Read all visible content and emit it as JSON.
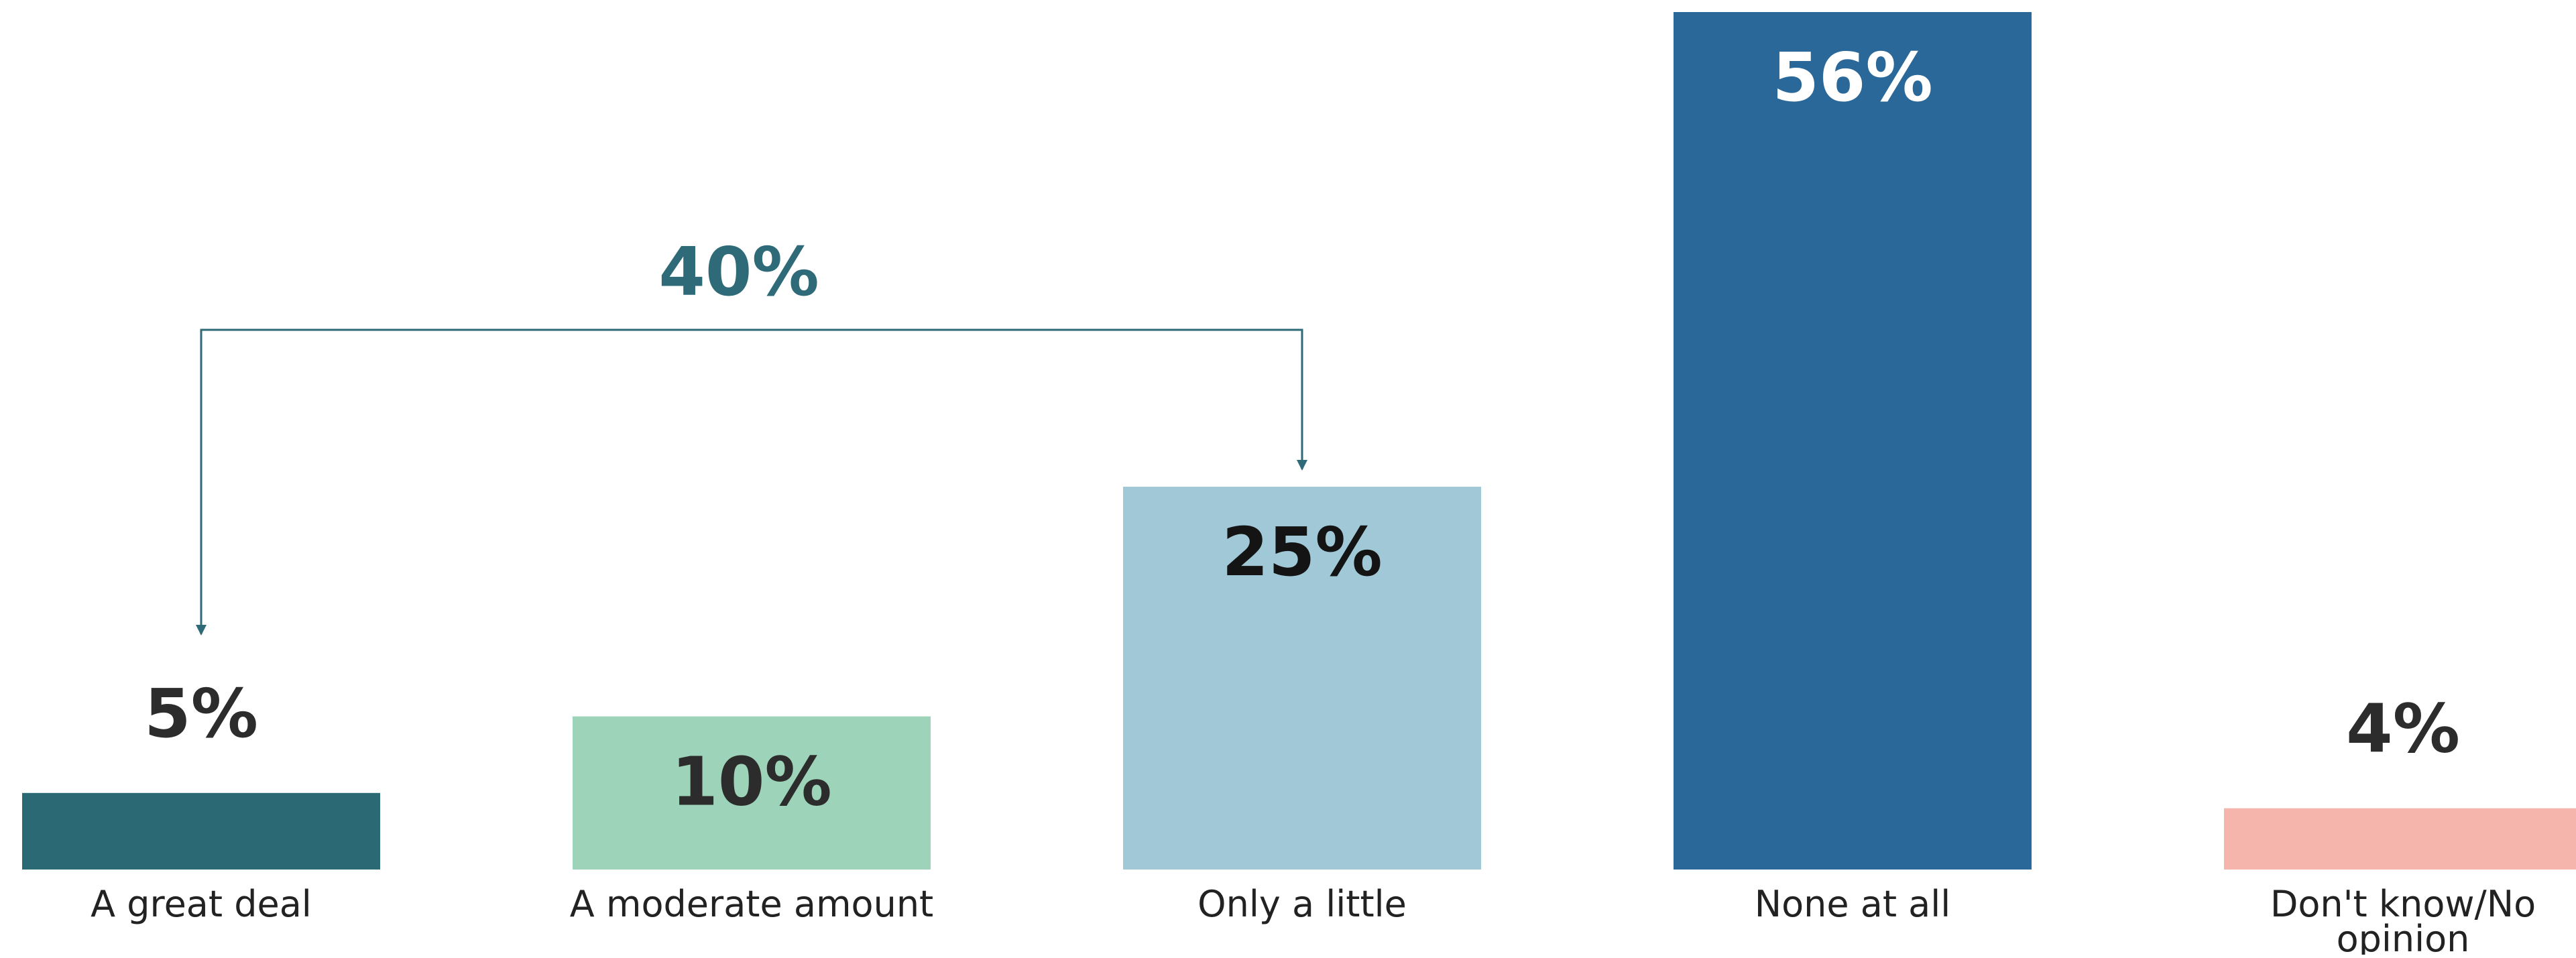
{
  "chart_data": {
    "type": "bar",
    "title": "",
    "xlabel": "",
    "ylabel": "",
    "categories": [
      "A great deal",
      "A moderate amount",
      "Only a little",
      "None at all",
      "Don't know/No opinion"
    ],
    "values": [
      5,
      10,
      25,
      56,
      4
    ],
    "data_labels": [
      "5%",
      "10%",
      "25%",
      "56%",
      "4%"
    ],
    "colors": [
      "#2b6a75",
      "#9dd3b9",
      "#a0c8d6",
      "#2a689a",
      "#f6b5ac"
    ],
    "label_colors": [
      "#2c2c2c",
      "#2c2c2c",
      "#141414",
      "#ffffff",
      "#2c2c2c"
    ],
    "ylim": [
      0,
      56
    ],
    "grid": false,
    "legend": "none",
    "annotations": [
      {
        "text": "40%",
        "from_category": "A great deal",
        "to_category": "Only a little",
        "color": "#2e6a78"
      }
    ]
  }
}
